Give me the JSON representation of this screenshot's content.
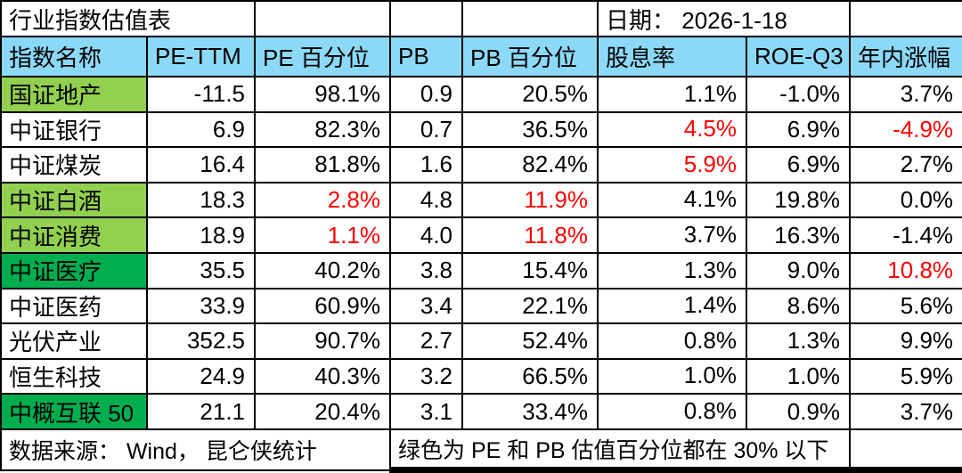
{
  "title": "行业指数估值表",
  "date": "日期： 2026-1-18",
  "columns": [
    "指数名称",
    "PE-TTM",
    "PE 百分位",
    "PB",
    "PB 百分位",
    "股息率",
    "ROE-Q3",
    "年内涨幅"
  ],
  "rows": [
    {
      "name": "国证地产",
      "highlight": "light",
      "pe": "-11.5",
      "pe_pct": "98.1%",
      "pb": "0.9",
      "pb_pct": "20.5%",
      "div": "1.1%",
      "roe": "-1.0%",
      "ytd": "3.7%",
      "red": []
    },
    {
      "name": "中证银行",
      "highlight": "none",
      "pe": "6.9",
      "pe_pct": "82.3%",
      "pb": "0.7",
      "pb_pct": "36.5%",
      "div": "4.5%",
      "roe": "6.9%",
      "ytd": "-4.9%",
      "red": [
        "div",
        "ytd"
      ]
    },
    {
      "name": "中证煤炭",
      "highlight": "none",
      "pe": "16.4",
      "pe_pct": "81.8%",
      "pb": "1.6",
      "pb_pct": "82.4%",
      "div": "5.9%",
      "roe": "6.9%",
      "ytd": "2.7%",
      "red": [
        "div"
      ]
    },
    {
      "name": "中证白酒",
      "highlight": "light",
      "pe": "18.3",
      "pe_pct": "2.8%",
      "pb": "4.8",
      "pb_pct": "11.9%",
      "div": "4.1%",
      "roe": "19.8%",
      "ytd": "0.0%",
      "red": [
        "pe_pct",
        "pb_pct"
      ]
    },
    {
      "name": "中证消费",
      "highlight": "light",
      "pe": "18.9",
      "pe_pct": "1.1%",
      "pb": "4.0",
      "pb_pct": "11.8%",
      "div": "3.7%",
      "roe": "16.3%",
      "ytd": "-1.4%",
      "red": [
        "pe_pct",
        "pb_pct"
      ]
    },
    {
      "name": "中证医疗",
      "highlight": "dark",
      "pe": "35.5",
      "pe_pct": "40.2%",
      "pb": "3.8",
      "pb_pct": "15.4%",
      "div": "1.3%",
      "roe": "9.0%",
      "ytd": "10.8%",
      "red": [
        "ytd"
      ]
    },
    {
      "name": "中证医药",
      "highlight": "none",
      "pe": "33.9",
      "pe_pct": "60.9%",
      "pb": "3.4",
      "pb_pct": "22.1%",
      "div": "1.4%",
      "roe": "8.6%",
      "ytd": "5.6%",
      "red": []
    },
    {
      "name": "光伏产业",
      "highlight": "none",
      "pe": "352.5",
      "pe_pct": "90.7%",
      "pb": "2.7",
      "pb_pct": "52.4%",
      "div": "0.8%",
      "roe": "1.3%",
      "ytd": "9.9%",
      "red": []
    },
    {
      "name": "恒生科技",
      "highlight": "none",
      "pe": "24.9",
      "pe_pct": "40.3%",
      "pb": "3.2",
      "pb_pct": "66.5%",
      "div": "1.0%",
      "roe": "1.0%",
      "ytd": "5.9%",
      "red": []
    },
    {
      "name": "中概互联 50",
      "highlight": "dark",
      "pe": "21.1",
      "pe_pct": "20.4%",
      "pb": "3.1",
      "pb_pct": "33.4%",
      "div": "0.8%",
      "roe": "0.9%",
      "ytd": "3.7%",
      "red": []
    }
  ],
  "footer": {
    "source": "数据来源： Wind， 昆仑侠统计",
    "note": "绿色为 PE 和 PB 估值百分位都在 30% 以下"
  },
  "colors": {
    "header_bg": "#8CD9F7",
    "light_green": "#92D050",
    "dark_green": "#00AE50",
    "red": "#FF0000",
    "border": "#000000"
  }
}
